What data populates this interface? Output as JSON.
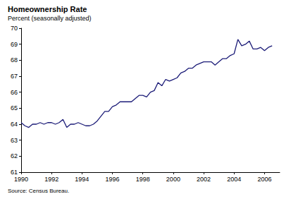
{
  "chart_data": {
    "type": "line",
    "title": "Homeownership Rate",
    "subtitle": "Percent (seasonally adjusted)",
    "source": "Source: Census Bureau.",
    "x": [
      1990,
      1990.25,
      1990.5,
      1990.75,
      1991,
      1991.25,
      1991.5,
      1991.75,
      1992,
      1992.25,
      1992.5,
      1992.75,
      1993,
      1993.25,
      1993.5,
      1993.75,
      1994,
      1994.25,
      1994.5,
      1994.75,
      1995,
      1995.25,
      1995.5,
      1995.75,
      1996,
      1996.25,
      1996.5,
      1996.75,
      1997,
      1997.25,
      1997.5,
      1997.75,
      1998,
      1998.25,
      1998.5,
      1998.75,
      1999,
      1999.25,
      1999.5,
      1999.75,
      2000,
      2000.25,
      2000.5,
      2000.75,
      2001,
      2001.25,
      2001.5,
      2001.75,
      2002,
      2002.25,
      2002.5,
      2002.75,
      2003,
      2003.25,
      2003.5,
      2003.75,
      2004,
      2004.25,
      2004.5,
      2004.75,
      2005,
      2005.25,
      2005.5,
      2005.75,
      2006,
      2006.25,
      2006.5
    ],
    "values": [
      64.1,
      63.9,
      63.8,
      64.0,
      64.0,
      64.1,
      64.0,
      64.1,
      64.1,
      64.0,
      64.1,
      64.3,
      63.8,
      64.0,
      64.0,
      64.1,
      64.0,
      63.9,
      63.9,
      64.0,
      64.2,
      64.5,
      64.8,
      64.8,
      65.1,
      65.2,
      65.4,
      65.4,
      65.4,
      65.4,
      65.6,
      65.8,
      65.8,
      65.7,
      66.0,
      66.1,
      66.6,
      66.4,
      66.8,
      66.7,
      66.8,
      66.9,
      67.2,
      67.3,
      67.5,
      67.5,
      67.7,
      67.8,
      67.9,
      67.9,
      67.9,
      67.7,
      67.9,
      68.1,
      68.1,
      68.3,
      68.4,
      69.3,
      68.9,
      69.0,
      69.2,
      68.7,
      68.7,
      68.8,
      68.6,
      68.8,
      68.9
    ],
    "color": "#1c1c78",
    "xlim": [
      1990,
      2007
    ],
    "xticks": [
      1990,
      1992,
      1994,
      1996,
      1998,
      2000,
      2002,
      2004,
      2006
    ],
    "ylim": [
      61,
      70
    ],
    "yticks": [
      61,
      62,
      63,
      64,
      65,
      66,
      67,
      68,
      69,
      70
    ],
    "grid": false
  }
}
